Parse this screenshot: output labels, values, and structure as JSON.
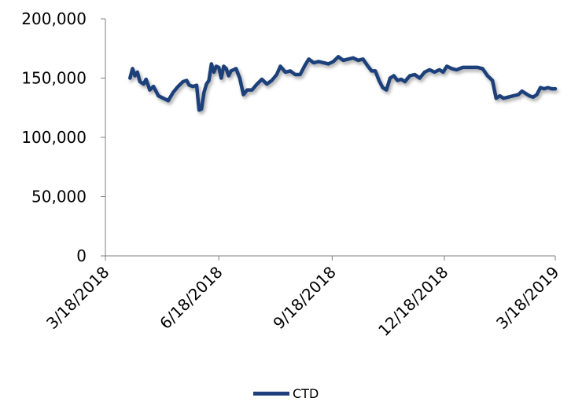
{
  "chart_data": {
    "type": "line",
    "title": "",
    "xlabel": "",
    "ylabel": "",
    "ylim": [
      0,
      200000
    ],
    "xlim": [
      "2018-03-18",
      "2019-03-18"
    ],
    "y_ticks": [
      0,
      50000,
      100000,
      150000,
      200000
    ],
    "y_tick_labels": [
      "0",
      "50,000",
      "100,000",
      "150,000",
      "200,000"
    ],
    "x_ticks": [
      "2018-03-18",
      "2018-06-18",
      "2018-09-18",
      "2018-12-18",
      "2019-03-18"
    ],
    "x_tick_labels": [
      "3/18/2018",
      "6/18/2018",
      "9/18/2018",
      "12/18/2018",
      "3/18/2019"
    ],
    "grid": false,
    "legend_position": "bottom",
    "colors": {
      "line": "#1f3f7a",
      "axis": "#7f7f7f"
    },
    "series": [
      {
        "name": "CTD",
        "points": [
          [
            "2018-04-07",
            150000
          ],
          [
            "2018-04-09",
            158000
          ],
          [
            "2018-04-11",
            152000
          ],
          [
            "2018-04-13",
            155000
          ],
          [
            "2018-04-15",
            147000
          ],
          [
            "2018-04-18",
            145000
          ],
          [
            "2018-04-20",
            149000
          ],
          [
            "2018-04-23",
            140000
          ],
          [
            "2018-04-26",
            143000
          ],
          [
            "2018-04-30",
            135000
          ],
          [
            "2018-05-04",
            133000
          ],
          [
            "2018-05-08",
            131000
          ],
          [
            "2018-05-12",
            138000
          ],
          [
            "2018-05-16",
            143000
          ],
          [
            "2018-05-20",
            147000
          ],
          [
            "2018-05-23",
            148000
          ],
          [
            "2018-05-25",
            144000
          ],
          [
            "2018-05-28",
            143000
          ],
          [
            "2018-05-31",
            144000
          ],
          [
            "2018-06-02",
            123000
          ],
          [
            "2018-06-04",
            124000
          ],
          [
            "2018-06-06",
            138000
          ],
          [
            "2018-06-08",
            145000
          ],
          [
            "2018-06-10",
            148000
          ],
          [
            "2018-06-12",
            162000
          ],
          [
            "2018-06-14",
            155000
          ],
          [
            "2018-06-16",
            160000
          ],
          [
            "2018-06-18",
            159000
          ],
          [
            "2018-06-20",
            150000
          ],
          [
            "2018-06-22",
            160000
          ],
          [
            "2018-06-24",
            158000
          ],
          [
            "2018-06-26",
            152000
          ],
          [
            "2018-06-28",
            156000
          ],
          [
            "2018-07-02",
            158000
          ],
          [
            "2018-07-05",
            150000
          ],
          [
            "2018-07-08",
            136000
          ],
          [
            "2018-07-11",
            140000
          ],
          [
            "2018-07-15",
            140000
          ],
          [
            "2018-07-19",
            145000
          ],
          [
            "2018-07-23",
            149000
          ],
          [
            "2018-07-27",
            145000
          ],
          [
            "2018-07-31",
            148000
          ],
          [
            "2018-08-04",
            153000
          ],
          [
            "2018-08-07",
            160000
          ],
          [
            "2018-08-11",
            155000
          ],
          [
            "2018-08-15",
            156000
          ],
          [
            "2018-08-19",
            153000
          ],
          [
            "2018-08-23",
            153000
          ],
          [
            "2018-08-27",
            161000
          ],
          [
            "2018-08-30",
            166000
          ],
          [
            "2018-09-03",
            163000
          ],
          [
            "2018-09-07",
            164000
          ],
          [
            "2018-09-11",
            163000
          ],
          [
            "2018-09-15",
            162000
          ],
          [
            "2018-09-19",
            164000
          ],
          [
            "2018-09-23",
            168000
          ],
          [
            "2018-09-27",
            165000
          ],
          [
            "2018-10-01",
            166000
          ],
          [
            "2018-10-05",
            167000
          ],
          [
            "2018-10-09",
            165000
          ],
          [
            "2018-10-13",
            166000
          ],
          [
            "2018-10-17",
            160000
          ],
          [
            "2018-10-20",
            156000
          ],
          [
            "2018-10-23",
            156000
          ],
          [
            "2018-10-26",
            148000
          ],
          [
            "2018-10-29",
            142000
          ],
          [
            "2018-11-01",
            140000
          ],
          [
            "2018-11-04",
            150000
          ],
          [
            "2018-11-07",
            152000
          ],
          [
            "2018-11-10",
            148000
          ],
          [
            "2018-11-13",
            149000
          ],
          [
            "2018-11-16",
            147000
          ],
          [
            "2018-11-20",
            152000
          ],
          [
            "2018-11-24",
            153000
          ],
          [
            "2018-11-28",
            150000
          ],
          [
            "2018-12-02",
            155000
          ],
          [
            "2018-12-06",
            157000
          ],
          [
            "2018-12-10",
            155000
          ],
          [
            "2018-12-14",
            157000
          ],
          [
            "2018-12-17",
            155000
          ],
          [
            "2018-12-20",
            160000
          ],
          [
            "2018-12-24",
            158000
          ],
          [
            "2018-12-28",
            157000
          ],
          [
            "2019-01-02",
            159000
          ],
          [
            "2019-01-06",
            159000
          ],
          [
            "2019-01-10",
            159000
          ],
          [
            "2019-01-14",
            159000
          ],
          [
            "2019-01-18",
            158000
          ],
          [
            "2019-01-22",
            152000
          ],
          [
            "2019-01-26",
            148000
          ],
          [
            "2019-01-29",
            133000
          ],
          [
            "2019-02-01",
            135000
          ],
          [
            "2019-02-04",
            133000
          ],
          [
            "2019-02-08",
            134000
          ],
          [
            "2019-02-12",
            135000
          ],
          [
            "2019-02-16",
            136000
          ],
          [
            "2019-02-19",
            139000
          ],
          [
            "2019-02-22",
            137000
          ],
          [
            "2019-02-25",
            135000
          ],
          [
            "2019-02-28",
            134000
          ],
          [
            "2019-03-03",
            136000
          ],
          [
            "2019-03-06",
            142000
          ],
          [
            "2019-03-09",
            141000
          ],
          [
            "2019-03-12",
            142000
          ],
          [
            "2019-03-15",
            141000
          ],
          [
            "2019-03-18",
            141000
          ]
        ]
      }
    ]
  }
}
